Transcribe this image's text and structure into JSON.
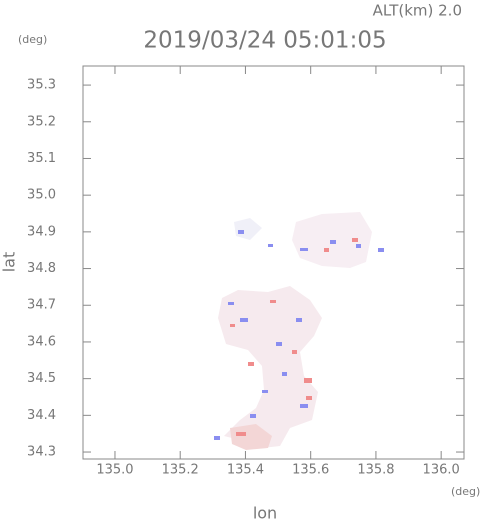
{
  "chart_data": {
    "type": "map",
    "title": "2019/03/24 05:01:05",
    "annotation": "ALT(km) 2.0",
    "ylabel_unit": "(deg)",
    "xlabel_unit": "(deg)",
    "xlabel": "lon",
    "ylabel": "lat",
    "xlim": [
      134.902,
      136.07
    ],
    "ylim": [
      34.281,
      35.352
    ],
    "xticks": [
      {
        "value": 135.0,
        "label": "135.0"
      },
      135.2,
      135.4,
      135.6,
      135.8,
      {
        "value": 136.0,
        "label": "136.0"
      }
    ],
    "yticks": [
      35.3,
      35.2,
      35.1,
      {
        "value": 35.0,
        "label": "35.0"
      },
      34.9,
      34.8,
      34.7,
      34.6,
      34.5,
      34.4,
      34.3
    ]
  }
}
